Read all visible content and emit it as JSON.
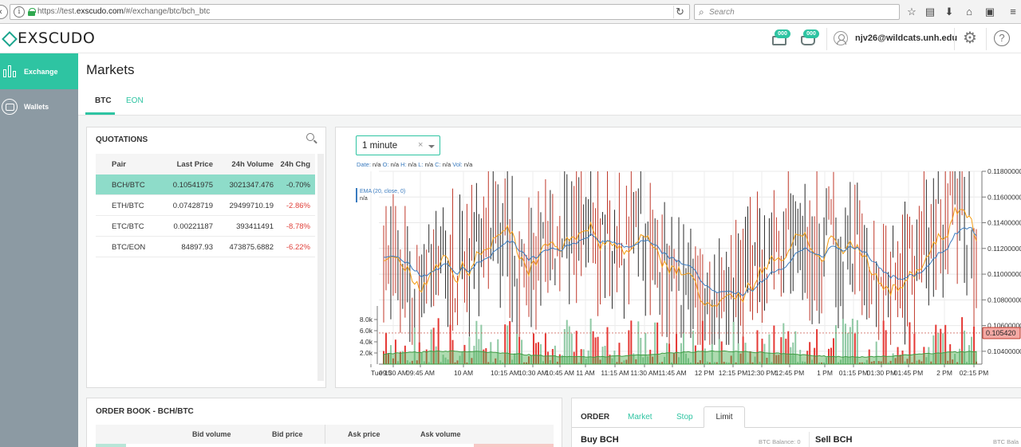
{
  "browser": {
    "url_prefix": "https://test.",
    "url_domain": "exscudo.com",
    "url_path": "/#/exchange/btc/bch_btc",
    "search_placeholder": "Search"
  },
  "header": {
    "logo_text": "EXSCUDO",
    "notification_badge_1": "000",
    "notification_badge_2": "000",
    "user_email": "njv26@wildcats.unh.edu"
  },
  "sidebar": {
    "items": [
      {
        "label": "Exchange",
        "icon": "candlestick-icon",
        "active": true
      },
      {
        "label": "Wallets",
        "icon": "wallet-icon",
        "active": false
      }
    ]
  },
  "page": {
    "title": "Markets",
    "tabs": [
      {
        "label": "BTC",
        "active": true
      },
      {
        "label": "EON",
        "active": false
      }
    ]
  },
  "quotations": {
    "title": "QUOTATIONS",
    "columns": [
      "Pair",
      "Last Price",
      "24h Volume",
      "24h Chg"
    ],
    "rows": [
      {
        "pair": "BCH/BTC",
        "price": "0.10541975",
        "volume": "3021347.476",
        "change": "-0.70%",
        "selected": true
      },
      {
        "pair": "ETH/BTC",
        "price": "0.07428719",
        "volume": "29499710.19",
        "change": "-2.86%",
        "selected": false
      },
      {
        "pair": "ETC/BTC",
        "price": "0.00221187",
        "volume": "393411491",
        "change": "-8.78%",
        "selected": false
      },
      {
        "pair": "BTC/EON",
        "price": "84897.93",
        "volume": "473875.6882",
        "change": "-6.22%",
        "selected": false
      }
    ]
  },
  "chart": {
    "interval": "1 minute",
    "clear_symbol": "×",
    "ohlc": {
      "date_label": "Date:",
      "date": "n/a",
      "o_label": "O:",
      "o": "n/a",
      "h_label": "H:",
      "h": "n/a",
      "l_label": "L:",
      "l": "n/a",
      "c_label": "C:",
      "c": "n/a",
      "vol_label": "Vol:",
      "vol": "n/a"
    },
    "ema_label": "EMA (20, close, 0)",
    "ema_value": "n/a",
    "current_price": "0.105420",
    "price_axis": [
      "0.11800000",
      "0.11600000",
      "0.11400000",
      "0.11200000",
      "0.11000000",
      "0.10800000",
      "0.10600000",
      "0.10400000"
    ],
    "volume_axis": [
      "8.0k",
      "6.0k",
      "4.0k",
      "2.0k"
    ],
    "time_axis": [
      "Tue 15",
      "09:30 AM",
      "09:45 AM",
      "10 AM",
      "10:15 AM",
      "10:30 AM",
      "10:45 AM",
      "11 AM",
      "11:15 AM",
      "11:30 AM",
      "11:45 AM",
      "12 PM",
      "12:15 PM",
      "12:30 PM",
      "12:45 PM",
      "1 PM",
      "01:15 PM",
      "01:30 PM",
      "01:45 PM",
      "2 PM",
      "02:15 PM"
    ],
    "colors": {
      "up": "#2a2a2a",
      "down": "#c0392b",
      "ema_blue": "#3a7bbf",
      "ema_orange": "#f39c12",
      "volume_up": "#8fc9a4",
      "volume_down": "#e53935",
      "volume_area": "#4caf50"
    }
  },
  "chart_data": {
    "type": "candlestick",
    "price_range": [
      0.103,
      0.118
    ],
    "volume_range": [
      0,
      9000
    ],
    "last_close": 0.10542,
    "x_range": [
      "Tue 15 09:20 AM",
      "02:20 PM"
    ],
    "grid": true
  },
  "order_book": {
    "title": "ORDER BOOK - BCH/BTC",
    "columns": [
      "Bid volume",
      "Bid price",
      "Ask price",
      "Ask volume"
    ]
  },
  "order": {
    "label": "ORDER",
    "tabs": [
      "Market",
      "Stop",
      "Limit"
    ],
    "active_tab": "Limit",
    "buy_title": "Buy BCH",
    "buy_balance": "BTC Balance: 0",
    "sell_title": "Sell BCH",
    "sell_balance": "BTC Bala"
  }
}
